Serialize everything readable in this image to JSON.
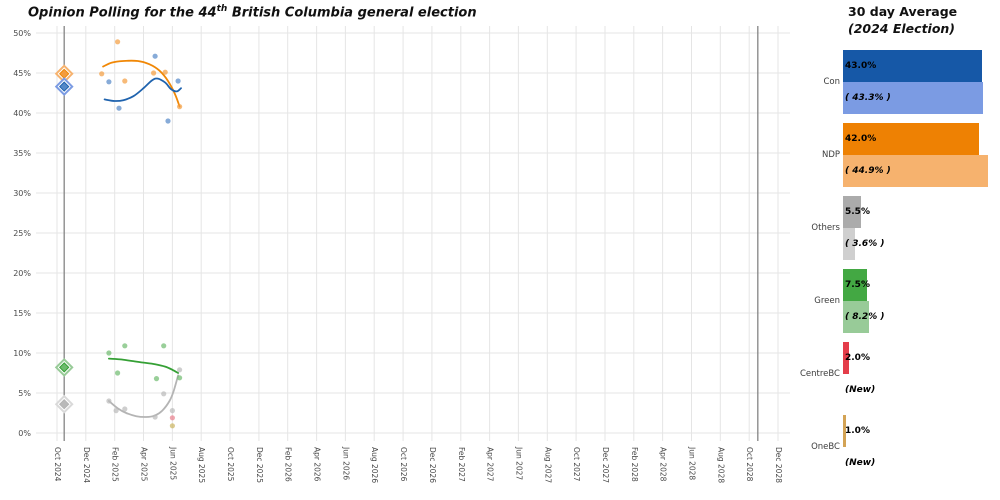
{
  "title": {
    "prefix": "Opinion Polling for the 44",
    "sup": "th",
    "suffix": " British Columbia general election"
  },
  "legend": {
    "title": "30 day Average",
    "subtitle": "(2024 Election)",
    "groups": [
      {
        "label": "Con",
        "current_label": "43.0%",
        "current": 43.0,
        "previous_label": "( 43.3% )",
        "previous": 43.3,
        "dark_color": "#1658A7",
        "light_color": "#7B9BE3"
      },
      {
        "label": "NDP",
        "current_label": "42.0%",
        "current": 42.0,
        "previous_label": "( 44.9% )",
        "previous": 44.9,
        "dark_color": "#EE8103",
        "light_color": "#F6B26E"
      },
      {
        "label": "Others",
        "current_label": "5.5%",
        "current": 5.5,
        "previous_label": "( 3.6% )",
        "previous": 3.6,
        "dark_color": "#ABABAB",
        "light_color": "#CFCFCF"
      },
      {
        "label": "Green",
        "current_label": "7.5%",
        "current": 7.5,
        "previous_label": "( 8.2% )",
        "previous": 8.2,
        "dark_color": "#43A843",
        "light_color": "#98CB98"
      },
      {
        "label": "CentreBC",
        "current_label": "2.0%",
        "current": 2.0,
        "previous_label": "(New)",
        "previous": null,
        "dark_color": "#E43D4A",
        "light_color": null
      },
      {
        "label": "OneBC",
        "current_label": "1.0%",
        "current": 1.0,
        "previous_label": "(New)",
        "previous": null,
        "dark_color": "#D3A355",
        "light_color": null
      }
    ]
  },
  "chart_data": {
    "type": "scatter",
    "title": "Opinion Polling for the 44th British Columbia general election",
    "x_axis": {
      "unit": "months since Oct 2024",
      "tick_step_months": 2,
      "range_months": [
        0,
        50
      ],
      "tick_labels": [
        "Oct 2024",
        "Dec 2024",
        "Feb 2025",
        "Apr 2025",
        "Jun 2025",
        "Aug 2025",
        "Oct 2025",
        "Dec 2025",
        "Feb 2026",
        "Apr 2026",
        "Jun 2026",
        "Aug 2026",
        "Oct 2026",
        "Dec 2026",
        "Feb 2027",
        "Apr 2027",
        "Jun 2027",
        "Aug 2027",
        "Oct 2027",
        "Dec 2027",
        "Feb 2028",
        "Apr 2028",
        "Jun 2028",
        "Aug 2028",
        "Oct 2028",
        "Dec 2028"
      ]
    },
    "y_axis": {
      "min": 0,
      "max": 50,
      "tick_step": 5,
      "tick_suffix": "%"
    },
    "grid": true,
    "grid_color": "#E5E5E5",
    "axis_label_color": "#4a4a4a",
    "election_line_color": "#8C8C8C",
    "election_marker_months": [
      0.5,
      48.6
    ],
    "series": [
      {
        "name": "Others",
        "point_color": "#B9B9B9",
        "line_color": "#B4B4B4",
        "halo_color": "#D9D9D9",
        "election": {
          "month": 0.5,
          "value": 3.6
        },
        "points": [
          [
            3.6,
            4.0
          ],
          [
            4.1,
            2.8
          ],
          [
            4.7,
            3.0
          ],
          [
            6.8,
            2.0
          ],
          [
            7.4,
            4.9
          ],
          [
            8.0,
            2.8
          ],
          [
            8.5,
            7.9
          ]
        ],
        "trend_line": [
          [
            3.6,
            4.0
          ],
          [
            4.2,
            3.1
          ],
          [
            4.8,
            2.5
          ],
          [
            5.5,
            2.1
          ],
          [
            6.2,
            2.0
          ],
          [
            6.8,
            2.2
          ],
          [
            7.3,
            2.8
          ],
          [
            7.8,
            4.0
          ],
          [
            8.1,
            5.3
          ],
          [
            8.4,
            7.2
          ]
        ]
      },
      {
        "name": "Green",
        "point_color": "#6DBB6D",
        "line_color": "#35A035",
        "halo_color": "#98CB98",
        "election": {
          "month": 0.5,
          "value": 8.2
        },
        "points": [
          [
            3.6,
            10.0
          ],
          [
            4.2,
            7.5
          ],
          [
            4.7,
            10.9
          ],
          [
            6.9,
            6.8
          ],
          [
            7.4,
            10.9
          ],
          [
            8.5,
            6.9
          ]
        ],
        "trend_line": [
          [
            3.6,
            9.3
          ],
          [
            4.4,
            9.2
          ],
          [
            5.2,
            9.0
          ],
          [
            6.0,
            8.8
          ],
          [
            6.8,
            8.6
          ],
          [
            7.5,
            8.3
          ],
          [
            8.0,
            7.9
          ],
          [
            8.4,
            7.5
          ]
        ]
      },
      {
        "name": "NDP",
        "point_color": "#F39C3E",
        "line_color": "#F08705",
        "halo_color": "#F6B26E",
        "election": {
          "month": 0.5,
          "value": 44.9
        },
        "points": [
          [
            3.1,
            44.9
          ],
          [
            4.2,
            48.9
          ],
          [
            4.7,
            44.0
          ],
          [
            6.7,
            45.0
          ],
          [
            7.5,
            45.1
          ],
          [
            8.5,
            40.8
          ]
        ],
        "trend_line": [
          [
            3.2,
            45.8
          ],
          [
            3.8,
            46.3
          ],
          [
            4.6,
            46.5
          ],
          [
            5.6,
            46.5
          ],
          [
            6.4,
            46.1
          ],
          [
            7.1,
            45.3
          ],
          [
            7.7,
            44.0
          ],
          [
            8.2,
            42.3
          ],
          [
            8.5,
            40.8
          ]
        ]
      },
      {
        "name": "Con",
        "point_color": "#5488C8",
        "line_color": "#1F63AE",
        "halo_color": "#7B9BE3",
        "election": {
          "month": 0.5,
          "value": 43.3
        },
        "points": [
          [
            3.6,
            43.9
          ],
          [
            4.3,
            40.6
          ],
          [
            6.8,
            47.1
          ],
          [
            7.7,
            39.0
          ],
          [
            8.4,
            44.0
          ]
        ],
        "trend_line": [
          [
            3.3,
            41.7
          ],
          [
            4.0,
            41.5
          ],
          [
            4.6,
            41.6
          ],
          [
            5.3,
            42.1
          ],
          [
            6.0,
            43.1
          ],
          [
            6.6,
            44.1
          ],
          [
            7.0,
            44.3
          ],
          [
            7.5,
            43.8
          ],
          [
            7.9,
            43.0
          ],
          [
            8.3,
            42.7
          ],
          [
            8.6,
            43.1
          ]
        ]
      },
      {
        "name": "CentreBC",
        "point_color": "#E87F8C",
        "line_color": "#E43D4A",
        "halo_color": null,
        "election": null,
        "points": [
          [
            8.0,
            1.9
          ]
        ],
        "trend_line": []
      },
      {
        "name": "OneBC",
        "point_color": "#CBB35F",
        "line_color": "#D3A355",
        "halo_color": null,
        "election": null,
        "points": [
          [
            8.0,
            0.9
          ]
        ],
        "trend_line": []
      }
    ]
  }
}
